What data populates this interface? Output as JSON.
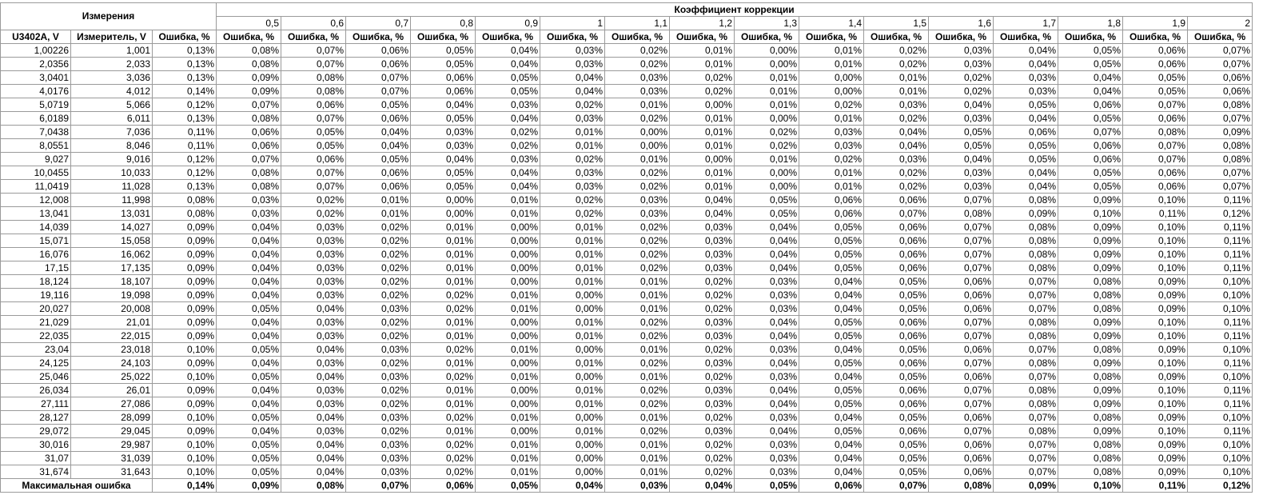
{
  "header": {
    "group_measurements": "Измерения",
    "group_coefficient": "Коэффициент коррекции",
    "coefficients": [
      "0,5",
      "0,6",
      "0,7",
      "0,8",
      "0,9",
      "1",
      "1,1",
      "1,2",
      "1,3",
      "1,4",
      "1,5",
      "1,6",
      "1,7",
      "1,8",
      "1,9",
      "2"
    ],
    "columns": [
      "U3402A, V",
      "Измеритель, V",
      "Ошибка, %",
      "Ошибка, %",
      "Ошибка, %",
      "Ошибка, %",
      "Ошибка, %",
      "Ошибка, %",
      "Ошибка, %",
      "Ошибка, %",
      "Ошибка, %",
      "Ошибка, %",
      "Ошибка, %",
      "Ошибка, %",
      "Ошибка, %",
      "Ошибка, %",
      "Ошибка, %",
      "Ошибка, %",
      "Ошибка, %"
    ]
  },
  "rows": [
    [
      "1,00226",
      "1,001",
      "0,13%",
      "0,08%",
      "0,07%",
      "0,06%",
      "0,05%",
      "0,04%",
      "0,03%",
      "0,02%",
      "0,01%",
      "0,00%",
      "0,01%",
      "0,02%",
      "0,03%",
      "0,04%",
      "0,05%",
      "0,06%",
      "0,07%"
    ],
    [
      "2,0356",
      "2,033",
      "0,13%",
      "0,08%",
      "0,07%",
      "0,06%",
      "0,05%",
      "0,04%",
      "0,03%",
      "0,02%",
      "0,01%",
      "0,00%",
      "0,01%",
      "0,02%",
      "0,03%",
      "0,04%",
      "0,05%",
      "0,06%",
      "0,07%"
    ],
    [
      "3,0401",
      "3,036",
      "0,13%",
      "0,09%",
      "0,08%",
      "0,07%",
      "0,06%",
      "0,05%",
      "0,04%",
      "0,03%",
      "0,02%",
      "0,01%",
      "0,00%",
      "0,01%",
      "0,02%",
      "0,03%",
      "0,04%",
      "0,05%",
      "0,06%"
    ],
    [
      "4,0176",
      "4,012",
      "0,14%",
      "0,09%",
      "0,08%",
      "0,07%",
      "0,06%",
      "0,05%",
      "0,04%",
      "0,03%",
      "0,02%",
      "0,01%",
      "0,00%",
      "0,01%",
      "0,02%",
      "0,03%",
      "0,04%",
      "0,05%",
      "0,06%"
    ],
    [
      "5,0719",
      "5,066",
      "0,12%",
      "0,07%",
      "0,06%",
      "0,05%",
      "0,04%",
      "0,03%",
      "0,02%",
      "0,01%",
      "0,00%",
      "0,01%",
      "0,02%",
      "0,03%",
      "0,04%",
      "0,05%",
      "0,06%",
      "0,07%",
      "0,08%"
    ],
    [
      "6,0189",
      "6,011",
      "0,13%",
      "0,08%",
      "0,07%",
      "0,06%",
      "0,05%",
      "0,04%",
      "0,03%",
      "0,02%",
      "0,01%",
      "0,00%",
      "0,01%",
      "0,02%",
      "0,03%",
      "0,04%",
      "0,05%",
      "0,06%",
      "0,07%"
    ],
    [
      "7,0438",
      "7,036",
      "0,11%",
      "0,06%",
      "0,05%",
      "0,04%",
      "0,03%",
      "0,02%",
      "0,01%",
      "0,00%",
      "0,01%",
      "0,02%",
      "0,03%",
      "0,04%",
      "0,05%",
      "0,06%",
      "0,07%",
      "0,08%",
      "0,09%"
    ],
    [
      "8,0551",
      "8,046",
      "0,11%",
      "0,06%",
      "0,05%",
      "0,04%",
      "0,03%",
      "0,02%",
      "0,01%",
      "0,00%",
      "0,01%",
      "0,02%",
      "0,03%",
      "0,04%",
      "0,05%",
      "0,05%",
      "0,06%",
      "0,07%",
      "0,08%"
    ],
    [
      "9,027",
      "9,016",
      "0,12%",
      "0,07%",
      "0,06%",
      "0,05%",
      "0,04%",
      "0,03%",
      "0,02%",
      "0,01%",
      "0,00%",
      "0,01%",
      "0,02%",
      "0,03%",
      "0,04%",
      "0,05%",
      "0,06%",
      "0,07%",
      "0,08%"
    ],
    [
      "10,0455",
      "10,033",
      "0,12%",
      "0,08%",
      "0,07%",
      "0,06%",
      "0,05%",
      "0,04%",
      "0,03%",
      "0,02%",
      "0,01%",
      "0,00%",
      "0,01%",
      "0,02%",
      "0,03%",
      "0,04%",
      "0,05%",
      "0,06%",
      "0,07%"
    ],
    [
      "11,0419",
      "11,028",
      "0,13%",
      "0,08%",
      "0,07%",
      "0,06%",
      "0,05%",
      "0,04%",
      "0,03%",
      "0,02%",
      "0,01%",
      "0,00%",
      "0,01%",
      "0,02%",
      "0,03%",
      "0,04%",
      "0,05%",
      "0,06%",
      "0,07%"
    ],
    [
      "12,008",
      "11,998",
      "0,08%",
      "0,03%",
      "0,02%",
      "0,01%",
      "0,00%",
      "0,01%",
      "0,02%",
      "0,03%",
      "0,04%",
      "0,05%",
      "0,06%",
      "0,06%",
      "0,07%",
      "0,08%",
      "0,09%",
      "0,10%",
      "0,11%"
    ],
    [
      "13,041",
      "13,031",
      "0,08%",
      "0,03%",
      "0,02%",
      "0,01%",
      "0,00%",
      "0,01%",
      "0,02%",
      "0,03%",
      "0,04%",
      "0,05%",
      "0,06%",
      "0,07%",
      "0,08%",
      "0,09%",
      "0,10%",
      "0,11%",
      "0,12%"
    ],
    [
      "14,039",
      "14,027",
      "0,09%",
      "0,04%",
      "0,03%",
      "0,02%",
      "0,01%",
      "0,00%",
      "0,01%",
      "0,02%",
      "0,03%",
      "0,04%",
      "0,05%",
      "0,06%",
      "0,07%",
      "0,08%",
      "0,09%",
      "0,10%",
      "0,11%"
    ],
    [
      "15,071",
      "15,058",
      "0,09%",
      "0,04%",
      "0,03%",
      "0,02%",
      "0,01%",
      "0,00%",
      "0,01%",
      "0,02%",
      "0,03%",
      "0,04%",
      "0,05%",
      "0,06%",
      "0,07%",
      "0,08%",
      "0,09%",
      "0,10%",
      "0,11%"
    ],
    [
      "16,076",
      "16,062",
      "0,09%",
      "0,04%",
      "0,03%",
      "0,02%",
      "0,01%",
      "0,00%",
      "0,01%",
      "0,02%",
      "0,03%",
      "0,04%",
      "0,05%",
      "0,06%",
      "0,07%",
      "0,08%",
      "0,09%",
      "0,10%",
      "0,11%"
    ],
    [
      "17,15",
      "17,135",
      "0,09%",
      "0,04%",
      "0,03%",
      "0,02%",
      "0,01%",
      "0,00%",
      "0,01%",
      "0,02%",
      "0,03%",
      "0,04%",
      "0,05%",
      "0,06%",
      "0,07%",
      "0,08%",
      "0,09%",
      "0,10%",
      "0,11%"
    ],
    [
      "18,124",
      "18,107",
      "0,09%",
      "0,04%",
      "0,03%",
      "0,02%",
      "0,01%",
      "0,00%",
      "0,01%",
      "0,01%",
      "0,02%",
      "0,03%",
      "0,04%",
      "0,05%",
      "0,06%",
      "0,07%",
      "0,08%",
      "0,09%",
      "0,10%"
    ],
    [
      "19,116",
      "19,098",
      "0,09%",
      "0,04%",
      "0,03%",
      "0,02%",
      "0,02%",
      "0,01%",
      "0,00%",
      "0,01%",
      "0,02%",
      "0,03%",
      "0,04%",
      "0,05%",
      "0,06%",
      "0,07%",
      "0,08%",
      "0,09%",
      "0,10%"
    ],
    [
      "20,027",
      "20,008",
      "0,09%",
      "0,05%",
      "0,04%",
      "0,03%",
      "0,02%",
      "0,01%",
      "0,00%",
      "0,01%",
      "0,02%",
      "0,03%",
      "0,04%",
      "0,05%",
      "0,06%",
      "0,07%",
      "0,08%",
      "0,09%",
      "0,10%"
    ],
    [
      "21,029",
      "21,01",
      "0,09%",
      "0,04%",
      "0,03%",
      "0,02%",
      "0,01%",
      "0,00%",
      "0,01%",
      "0,02%",
      "0,03%",
      "0,04%",
      "0,05%",
      "0,06%",
      "0,07%",
      "0,08%",
      "0,09%",
      "0,10%",
      "0,11%"
    ],
    [
      "22,035",
      "22,015",
      "0,09%",
      "0,04%",
      "0,03%",
      "0,02%",
      "0,01%",
      "0,00%",
      "0,01%",
      "0,02%",
      "0,03%",
      "0,04%",
      "0,05%",
      "0,06%",
      "0,07%",
      "0,08%",
      "0,09%",
      "0,10%",
      "0,11%"
    ],
    [
      "23,04",
      "23,018",
      "0,10%",
      "0,05%",
      "0,04%",
      "0,03%",
      "0,02%",
      "0,01%",
      "0,00%",
      "0,01%",
      "0,02%",
      "0,03%",
      "0,04%",
      "0,05%",
      "0,06%",
      "0,07%",
      "0,08%",
      "0,09%",
      "0,10%"
    ],
    [
      "24,125",
      "24,103",
      "0,09%",
      "0,04%",
      "0,03%",
      "0,02%",
      "0,01%",
      "0,00%",
      "0,01%",
      "0,02%",
      "0,03%",
      "0,04%",
      "0,05%",
      "0,06%",
      "0,07%",
      "0,08%",
      "0,09%",
      "0,10%",
      "0,11%"
    ],
    [
      "25,046",
      "25,022",
      "0,10%",
      "0,05%",
      "0,04%",
      "0,03%",
      "0,02%",
      "0,01%",
      "0,00%",
      "0,01%",
      "0,02%",
      "0,03%",
      "0,04%",
      "0,05%",
      "0,06%",
      "0,07%",
      "0,08%",
      "0,09%",
      "0,10%"
    ],
    [
      "26,034",
      "26,01",
      "0,09%",
      "0,04%",
      "0,03%",
      "0,02%",
      "0,01%",
      "0,00%",
      "0,01%",
      "0,02%",
      "0,03%",
      "0,04%",
      "0,05%",
      "0,06%",
      "0,07%",
      "0,08%",
      "0,09%",
      "0,10%",
      "0,11%"
    ],
    [
      "27,111",
      "27,086",
      "0,09%",
      "0,04%",
      "0,03%",
      "0,02%",
      "0,01%",
      "0,00%",
      "0,01%",
      "0,02%",
      "0,03%",
      "0,04%",
      "0,05%",
      "0,06%",
      "0,07%",
      "0,08%",
      "0,09%",
      "0,10%",
      "0,11%"
    ],
    [
      "28,127",
      "28,099",
      "0,10%",
      "0,05%",
      "0,04%",
      "0,03%",
      "0,02%",
      "0,01%",
      "0,00%",
      "0,01%",
      "0,02%",
      "0,03%",
      "0,04%",
      "0,05%",
      "0,06%",
      "0,07%",
      "0,08%",
      "0,09%",
      "0,10%"
    ],
    [
      "29,072",
      "29,045",
      "0,09%",
      "0,04%",
      "0,03%",
      "0,02%",
      "0,01%",
      "0,00%",
      "0,01%",
      "0,02%",
      "0,03%",
      "0,04%",
      "0,05%",
      "0,06%",
      "0,07%",
      "0,08%",
      "0,09%",
      "0,10%",
      "0,11%"
    ],
    [
      "30,016",
      "29,987",
      "0,10%",
      "0,05%",
      "0,04%",
      "0,03%",
      "0,02%",
      "0,01%",
      "0,00%",
      "0,01%",
      "0,02%",
      "0,03%",
      "0,04%",
      "0,05%",
      "0,06%",
      "0,07%",
      "0,08%",
      "0,09%",
      "0,10%"
    ],
    [
      "31,07",
      "31,039",
      "0,10%",
      "0,05%",
      "0,04%",
      "0,03%",
      "0,02%",
      "0,01%",
      "0,00%",
      "0,01%",
      "0,02%",
      "0,03%",
      "0,04%",
      "0,05%",
      "0,06%",
      "0,07%",
      "0,08%",
      "0,09%",
      "0,10%"
    ],
    [
      "31,674",
      "31,643",
      "0,10%",
      "0,05%",
      "0,04%",
      "0,03%",
      "0,02%",
      "0,01%",
      "0,00%",
      "0,01%",
      "0,02%",
      "0,03%",
      "0,04%",
      "0,05%",
      "0,06%",
      "0,07%",
      "0,08%",
      "0,09%",
      "0,10%"
    ]
  ],
  "footer": {
    "label": "Максимальная ошибка",
    "values": [
      "0,14%",
      "0,09%",
      "0,08%",
      "0,07%",
      "0,06%",
      "0,05%",
      "0,04%",
      "0,03%",
      "0,04%",
      "0,05%",
      "0,06%",
      "0,07%",
      "0,08%",
      "0,09%",
      "0,10%",
      "0,11%",
      "0,12%"
    ]
  }
}
